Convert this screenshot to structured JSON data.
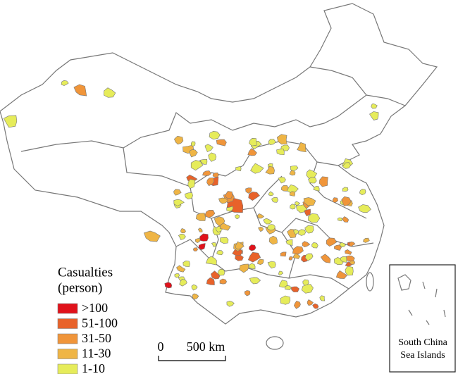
{
  "legend": {
    "title": [
      "Casualties",
      "(person)"
    ],
    "items": [
      {
        "label": ">100",
        "color": "#e0121b"
      },
      {
        "label": "51-100",
        "color": "#e8622a"
      },
      {
        "label": "31-50",
        "color": "#f0953a"
      },
      {
        "label": "11-30",
        "color": "#efb545"
      },
      {
        "label": "1-10",
        "color": "#e6ec5a"
      }
    ]
  },
  "scale_bar": {
    "labels": [
      "0",
      "500 km"
    ]
  },
  "inset": {
    "label": [
      "South China",
      "Sea Islands"
    ]
  }
}
